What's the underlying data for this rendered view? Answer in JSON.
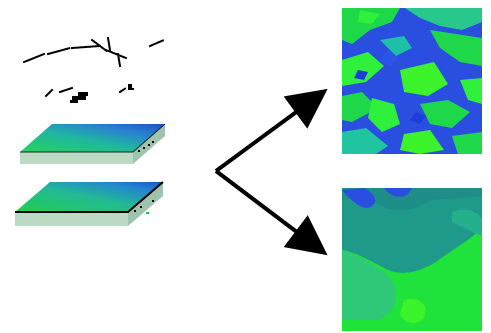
{
  "diagram": {
    "colors": {
      "background": "#ffffff",
      "deep_blue": "#1f3bd9",
      "mid_blue": "#2a55e8",
      "teal": "#1e9a8a",
      "sea_green": "#24a87c",
      "bright_green": "#19e33e",
      "lime": "#3cf22a",
      "slab_side": "#b8d8c0",
      "arrow": "#000000"
    },
    "elements": [
      {
        "name": "sparse-point-data",
        "kind": "scattered dashes"
      },
      {
        "name": "upper-gradient-layer",
        "kind": "surface slab"
      },
      {
        "name": "lower-gradient-layer",
        "kind": "surface slab"
      },
      {
        "name": "fragmented-classification-map",
        "kind": "raster map"
      },
      {
        "name": "smooth-classification-map",
        "kind": "raster map"
      }
    ]
  }
}
